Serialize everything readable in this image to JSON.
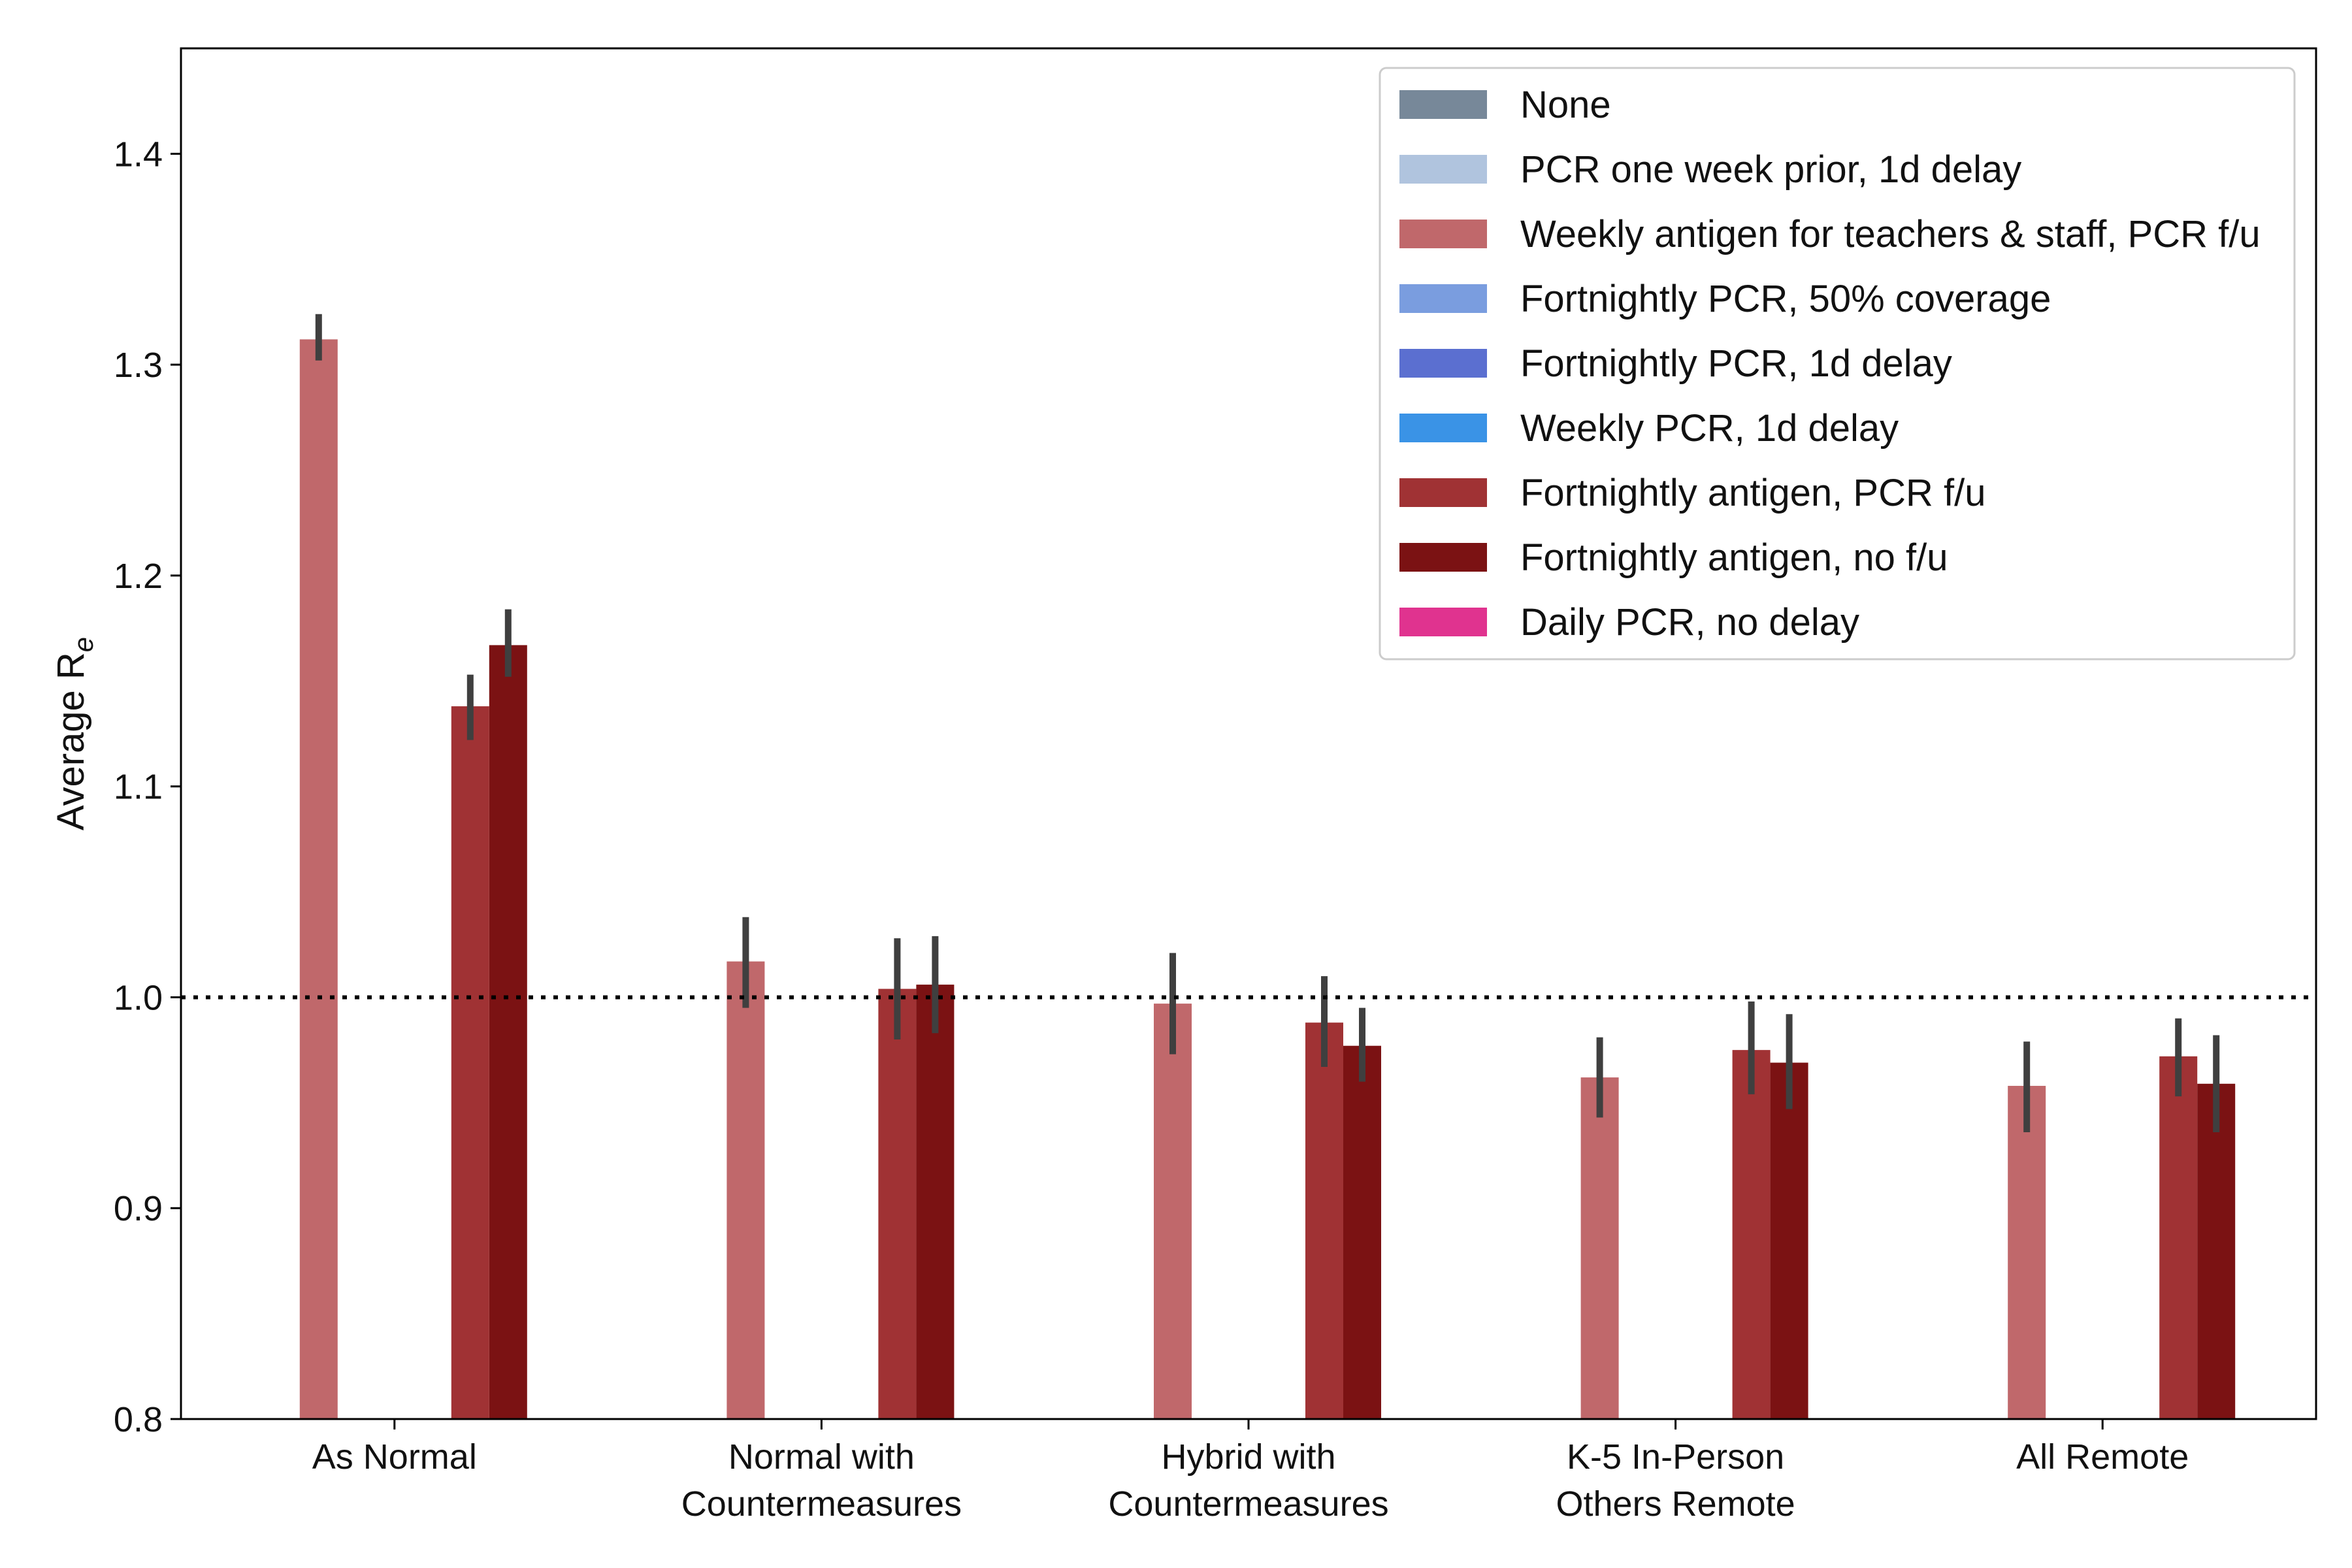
{
  "chart_data": {
    "type": "bar",
    "title": "",
    "xlabel": "",
    "ylabel": "Average R",
    "ylabel_subscript": "e",
    "ylim": [
      0.8,
      1.45
    ],
    "yticks": [
      "0.8",
      "0.9",
      "1.0",
      "1.1",
      "1.2",
      "1.3",
      "1.4"
    ],
    "reference_line": 1.0,
    "legend_position": "top-right",
    "categories": [
      [
        "As Normal"
      ],
      [
        "Normal with",
        "Countermeasures"
      ],
      [
        "Hybrid with",
        "Countermeasures"
      ],
      [
        "K-5 In-Person",
        "Others Remote"
      ],
      [
        "All Remote"
      ]
    ],
    "series": [
      {
        "name": "None",
        "color": "#778899",
        "values": [
          null,
          null,
          null,
          null,
          null
        ]
      },
      {
        "name": "PCR one week prior, 1d delay",
        "color": "#b0c4de",
        "values": [
          null,
          null,
          null,
          null,
          null
        ]
      },
      {
        "name": "Weekly antigen for teachers & staff, PCR f/u",
        "color": "#c0686b",
        "values": [
          1.312,
          1.017,
          0.997,
          0.962,
          0.958
        ],
        "err_low": [
          1.302,
          0.995,
          0.973,
          0.943,
          0.936
        ],
        "err_high": [
          1.324,
          1.038,
          1.021,
          0.981,
          0.979
        ]
      },
      {
        "name": "Fortnightly PCR, 50% coverage",
        "color": "#7a9ddf",
        "values": [
          null,
          null,
          null,
          null,
          null
        ]
      },
      {
        "name": "Fortnightly PCR, 1d delay",
        "color": "#5b6fd0",
        "values": [
          null,
          null,
          null,
          null,
          null
        ]
      },
      {
        "name": "Weekly PCR, 1d delay",
        "color": "#3a93e6",
        "values": [
          null,
          null,
          null,
          null,
          null
        ]
      },
      {
        "name": "Fortnightly antigen, PCR f/u",
        "color": "#a03234",
        "values": [
          1.138,
          1.004,
          0.988,
          0.975,
          0.972
        ],
        "err_low": [
          1.122,
          0.98,
          0.967,
          0.954,
          0.953
        ],
        "err_high": [
          1.153,
          1.028,
          1.01,
          0.998,
          0.99
        ]
      },
      {
        "name": "Fortnightly antigen, no f/u",
        "color": "#7b1213",
        "values": [
          1.167,
          1.006,
          0.977,
          0.969,
          0.959
        ],
        "err_low": [
          1.152,
          0.983,
          0.96,
          0.947,
          0.936
        ],
        "err_high": [
          1.184,
          1.029,
          0.995,
          0.992,
          0.982
        ]
      },
      {
        "name": "Daily PCR, no delay",
        "color": "#e0338f",
        "values": [
          null,
          null,
          null,
          null,
          null
        ]
      }
    ]
  }
}
